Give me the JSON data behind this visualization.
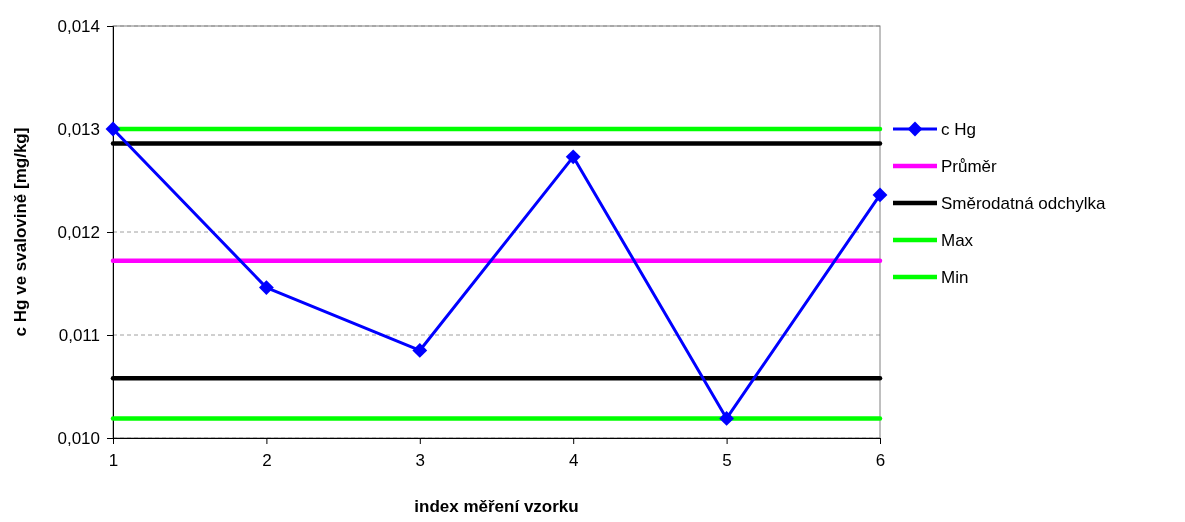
{
  "chart_data": {
    "type": "line",
    "xlabel": "index měření vzorku",
    "ylabel": "c Hg ve svalovině [mg/kg]",
    "categories": [
      "1",
      "2",
      "3",
      "4",
      "5",
      "6"
    ],
    "ylim": [
      0.01,
      0.014
    ],
    "yticks": [
      {
        "value": 0.01,
        "label": "0,010"
      },
      {
        "value": 0.011,
        "label": "0,011"
      },
      {
        "value": 0.012,
        "label": "0,012"
      },
      {
        "value": 0.013,
        "label": "0,013"
      },
      {
        "value": 0.014,
        "label": "0,014"
      }
    ],
    "grid": "y",
    "legend": "right",
    "line_style": "solid",
    "series": [
      {
        "name": "c Hg",
        "color": "#0000ff",
        "marker": "diamond",
        "values": [
          0.013,
          0.01146,
          0.01085,
          0.01273,
          0.01019,
          0.01236
        ]
      },
      {
        "name": "Průměr",
        "color": "#ff00ff",
        "marker": "none",
        "values": [
          0.01172,
          0.01172,
          0.01172,
          0.01172,
          0.01172,
          0.01172
        ]
      },
      {
        "name": "Směrodatná odchylka",
        "color": "#000000",
        "marker": "none",
        "values": [
          0.01286,
          0.01286,
          0.01286,
          0.01286,
          0.01286,
          0.01286
        ]
      },
      {
        "name": "Max",
        "color": "#00ff00",
        "marker": "none",
        "values": [
          0.013,
          0.013,
          0.013,
          0.013,
          0.013,
          0.013
        ]
      },
      {
        "name": "Min",
        "color": "#00ff00",
        "marker": "none",
        "values": [
          0.01019,
          0.01019,
          0.01019,
          0.01019,
          0.01019,
          0.01019
        ]
      },
      {
        "color": "#000000",
        "marker": "none",
        "values": [
          0.01058,
          0.01058,
          0.01058,
          0.01058,
          0.01058,
          0.01058
        ]
      }
    ]
  }
}
